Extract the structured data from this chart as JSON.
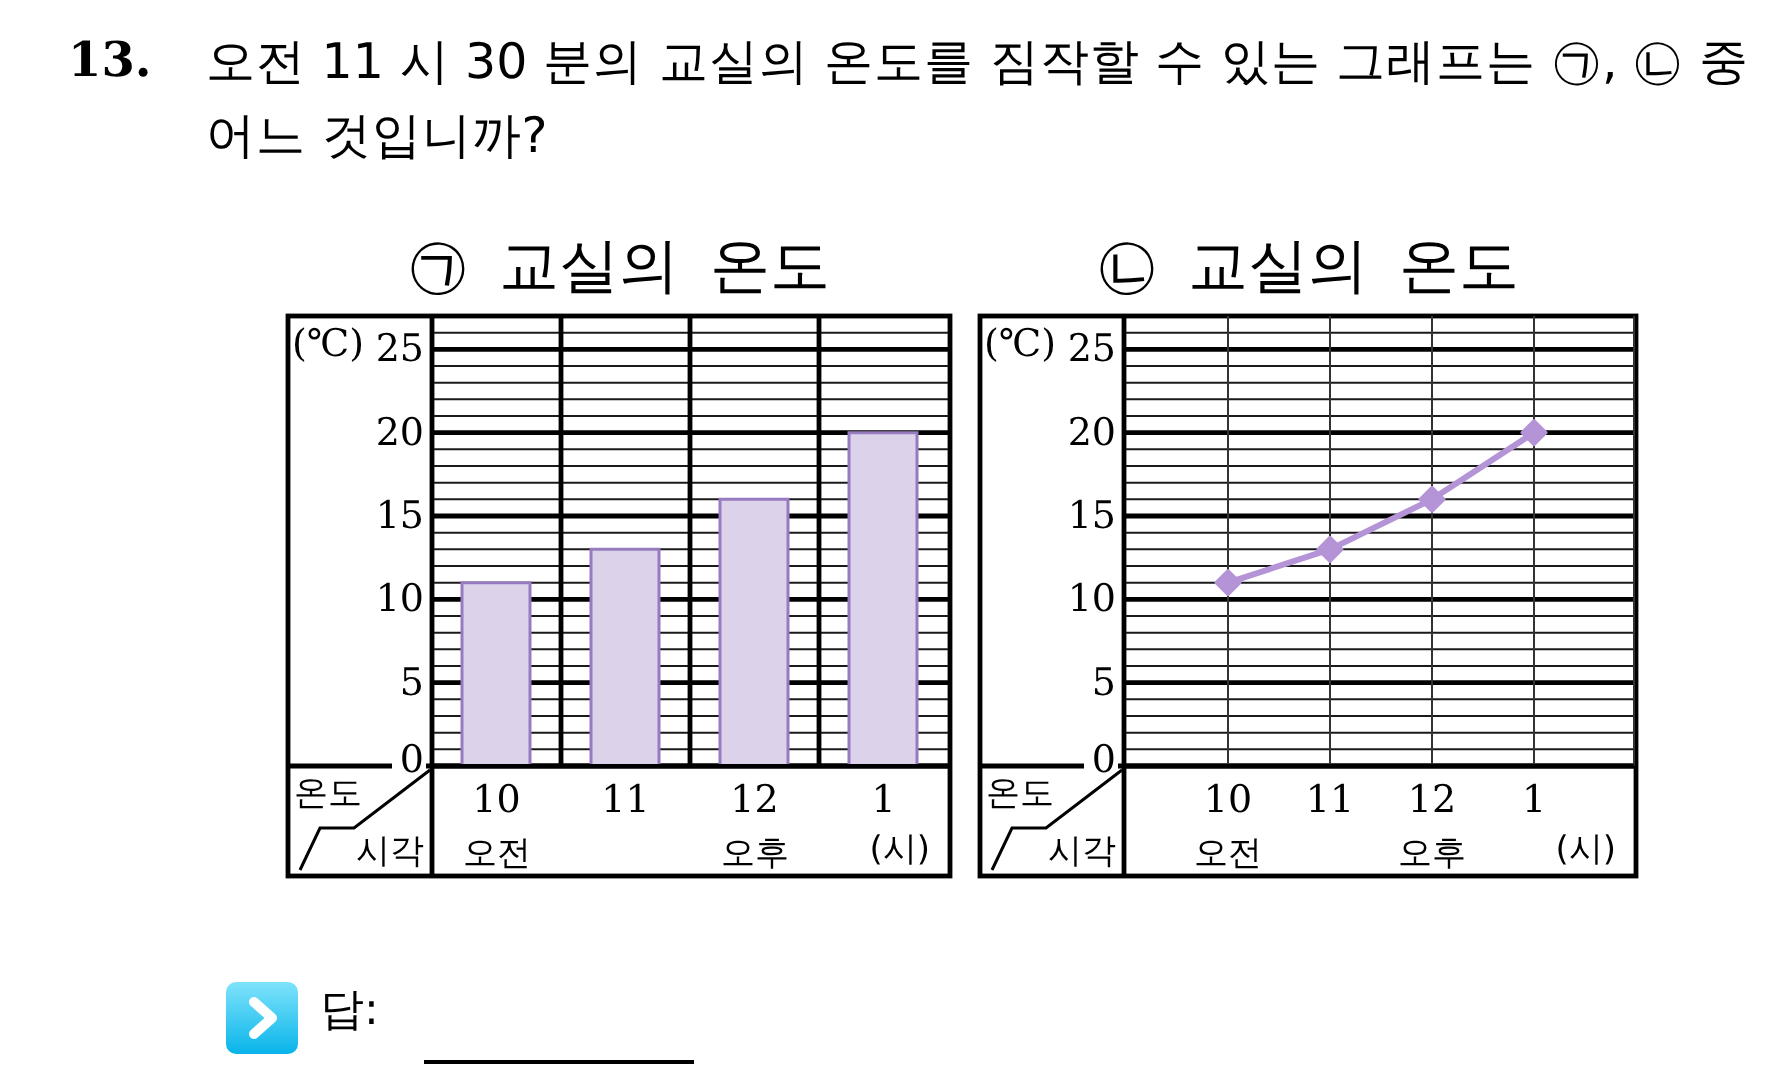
{
  "chart_data": [
    {
      "type": "other",
      "annotations": [
        "13.",
        "오전 11 시 30 분의 교실의 온도를 짐작할 수 있는 그래프는 ㉠, ㉡ 중 어느 것입니까?"
      ]
    },
    {
      "type": "bar",
      "title": "㉠ 교실의 온도",
      "xlabel": "(시)",
      "ylabel": "(℃)",
      "categories": [
        "10",
        "11",
        "12",
        "1"
      ],
      "values": [
        11,
        13,
        16,
        20
      ],
      "color": "#dcd3ea",
      "ylim": [
        0,
        27
      ],
      "yticks": [
        0,
        {
          "value": 1,
          "label": null
        },
        {
          "value": 2,
          "label": null
        },
        {
          "value": 3,
          "label": null
        },
        {
          "value": 4,
          "label": null
        },
        5,
        {
          "value": 6,
          "label": null
        },
        {
          "value": 7,
          "label": null
        },
        {
          "value": 8,
          "label": null
        },
        {
          "value": 9,
          "label": null
        },
        10,
        {
          "value": 11,
          "label": null
        },
        {
          "value": 12,
          "label": null
        },
        {
          "value": 13,
          "label": null
        },
        {
          "value": 14,
          "label": null
        },
        15,
        {
          "value": 16,
          "label": null
        },
        {
          "value": 17,
          "label": null
        },
        {
          "value": 18,
          "label": null
        },
        {
          "value": 19,
          "label": null
        },
        20,
        {
          "value": 21,
          "label": null
        },
        {
          "value": 22,
          "label": null
        },
        {
          "value": 23,
          "label": null
        },
        {
          "value": 24,
          "label": null
        },
        25,
        {
          "value": 26,
          "label": null
        }
      ],
      "grid": true,
      "annotations": [
        "온도",
        "시각",
        "오전",
        "오후"
      ]
    },
    {
      "type": "line",
      "title": "㉡ 교실의 온도",
      "xlabel": "(시)",
      "ylabel": "(℃)",
      "categories": [
        "10",
        "11",
        "12",
        "1"
      ],
      "values": [
        11,
        13,
        16,
        20
      ],
      "color": "#b493d6",
      "marker": "diamond",
      "line_style": "solid",
      "ylim": [
        0,
        27
      ],
      "yticks": [
        0,
        {
          "value": 1,
          "label": null
        },
        {
          "value": 2,
          "label": null
        },
        {
          "value": 3,
          "label": null
        },
        {
          "value": 4,
          "label": null
        },
        5,
        {
          "value": 6,
          "label": null
        },
        {
          "value": 7,
          "label": null
        },
        {
          "value": 8,
          "label": null
        },
        {
          "value": 9,
          "label": null
        },
        10,
        {
          "value": 11,
          "label": null
        },
        {
          "value": 12,
          "label": null
        },
        {
          "value": 13,
          "label": null
        },
        {
          "value": 14,
          "label": null
        },
        15,
        {
          "value": 16,
          "label": null
        },
        {
          "value": 17,
          "label": null
        },
        {
          "value": 18,
          "label": null
        },
        {
          "value": 19,
          "label": null
        },
        20,
        {
          "value": 21,
          "label": null
        },
        {
          "value": 22,
          "label": null
        },
        {
          "value": 23,
          "label": null
        },
        {
          "value": 24,
          "label": null
        },
        25,
        {
          "value": 26,
          "label": null
        }
      ],
      "grid": true,
      "annotations": [
        "온도",
        "시각",
        "오전",
        "오후"
      ]
    },
    {
      "type": "other",
      "annotations": [
        "답:"
      ]
    }
  ]
}
